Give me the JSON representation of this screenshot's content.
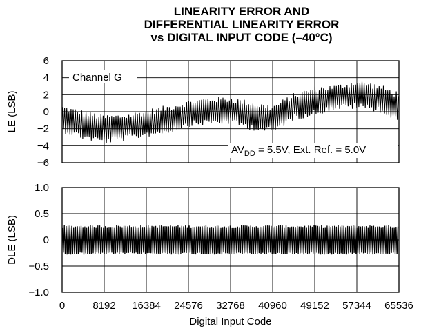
{
  "title_lines": [
    "LINEARITY ERROR AND",
    "DIFFERENTIAL LINEARITY ERROR",
    "vs DIGITAL INPUT CODE (–40°C)"
  ],
  "chart_data": [
    {
      "type": "line",
      "ylabel": "LE (LSB)",
      "xlabel": "",
      "ylim": [
        -6,
        6
      ],
      "xlim": [
        0,
        65536
      ],
      "grid": true,
      "yticks": [
        "6",
        "4",
        "2",
        "0",
        "−2",
        "−4",
        "−6"
      ],
      "ytick_values": [
        6,
        4,
        2,
        0,
        -2,
        -4,
        -6
      ],
      "annotations": {
        "channel": "Channel G",
        "supply_prefix": "AV",
        "supply_sub": "DD",
        "supply_rest": " = 5.5V, Ext. Ref. = 5.0V"
      },
      "series": [
        {
          "envelope_x": [
            0,
            4096,
            8192,
            12288,
            16384,
            20480,
            24576,
            28672,
            32768,
            36864,
            40960,
            45056,
            49152,
            53248,
            57344,
            61440,
            65536
          ],
          "upper": [
            0.8,
            0.2,
            -0.3,
            -0.2,
            0.3,
            0.8,
            1.4,
            1.8,
            1.8,
            1.3,
            0.8,
            2.2,
            3.0,
            3.2,
            3.8,
            3.3,
            2.4
          ],
          "lower": [
            -2.5,
            -3.3,
            -3.8,
            -3.5,
            -3.0,
            -2.6,
            -1.8,
            -1.6,
            -1.5,
            -2.2,
            -2.6,
            -1.0,
            -0.5,
            0.2,
            0.3,
            0.0,
            -1.5
          ]
        }
      ]
    },
    {
      "type": "line",
      "ylabel": "DLE (LSB)",
      "xlabel": "Digital Input Code",
      "ylim": [
        -1.0,
        1.0
      ],
      "xlim": [
        0,
        65536
      ],
      "grid": true,
      "yticks": [
        "1.0",
        "0.5",
        "0",
        "−0.5",
        "−1.0"
      ],
      "ytick_values": [
        1.0,
        0.5,
        0,
        -0.5,
        -1.0
      ],
      "xticks": [
        "0",
        "8192",
        "16384",
        "24576",
        "32768",
        "40960",
        "49152",
        "57344",
        "65536"
      ],
      "xtick_values": [
        0,
        8192,
        16384,
        24576,
        32768,
        40960,
        49152,
        57344,
        65536
      ],
      "series": [
        {
          "envelope_x": [
            0,
            65536
          ],
          "upper": [
            0.28,
            0.28
          ],
          "lower": [
            -0.28,
            -0.28
          ]
        }
      ]
    }
  ]
}
